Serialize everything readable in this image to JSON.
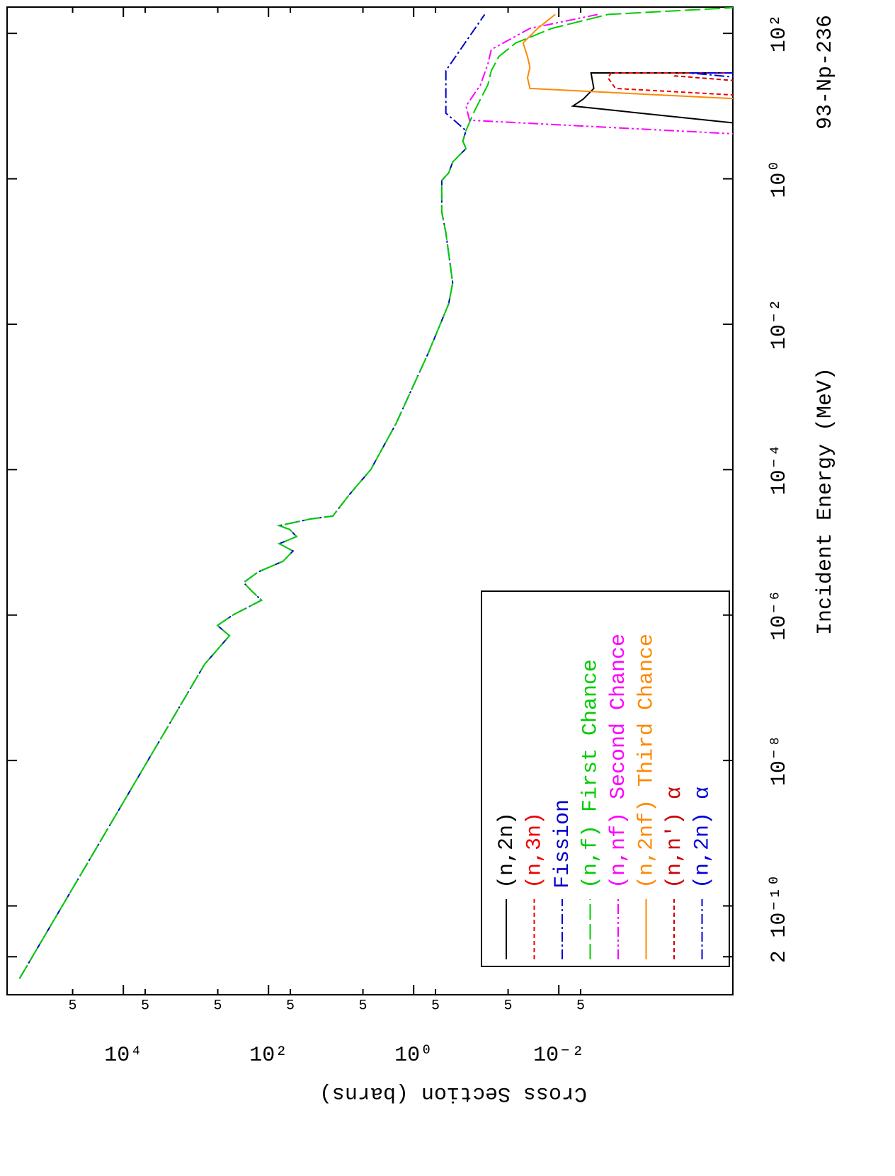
{
  "chart_data": {
    "type": "line",
    "x_label": "Incident Energy (MeV)",
    "y_label": "Cross Section (barns)",
    "annotation": "93-Np-236",
    "log_x": true,
    "log_y": true,
    "xlim": [
      6e-12,
      230
    ],
    "ylim": [
      4e-05,
      400000
    ],
    "xticks": [
      {
        "value": 2e-11,
        "label": "2"
      },
      {
        "value": 1e-10,
        "label": "10⁻¹⁰"
      },
      {
        "value": 1e-08,
        "label": "10⁻⁸"
      },
      {
        "value": 1e-06,
        "label": "10⁻⁶"
      },
      {
        "value": 0.0001,
        "label": "10⁻⁴"
      },
      {
        "value": 0.01,
        "label": "10⁻²"
      },
      {
        "value": 1,
        "label": "10⁰"
      },
      {
        "value": 100,
        "label": "10²"
      }
    ],
    "yticks": [
      {
        "value": 0.005,
        "label": "5"
      },
      {
        "value": 0.01,
        "label": "10⁻²"
      },
      {
        "value": 0.05,
        "label": "5"
      },
      {
        "value": 0.5,
        "label": "5"
      },
      {
        "value": 1,
        "label": "10⁰"
      },
      5,
      {
        "value": 50,
        "label": "5"
      },
      {
        "value": 100,
        "label": "10²"
      },
      {
        "value": 500,
        "label": "5"
      },
      {
        "value": 5000,
        "label": "5"
      },
      {
        "value": 10000,
        "label": "10⁴"
      },
      {
        "value": 50000,
        "label": "5"
      }
    ],
    "legend_position": "lower right",
    "series": [
      {
        "name": "(n,2n)",
        "color": "#000000",
        "dash": "",
        "x": [
          5.7,
          10,
          12.5,
          17.5,
          28.6,
          28.6
        ],
        "values": [
          3e-05,
          0.0064,
          0.0046,
          0.0033,
          0.0036,
          3e-05
        ]
      },
      {
        "name": "(n,3n)",
        "color": "#ee0000",
        "dash": "6,4",
        "x": [
          14,
          17.5,
          24.5,
          28.6,
          28.6
        ],
        "values": [
          3e-05,
          0.00166,
          0.0021,
          0.0019,
          3e-05
        ]
      },
      {
        "name": "Fission",
        "color": "#0000cc",
        "dash": "14,4,3,4",
        "x": [
          1e-11,
          2.1e-07,
          5.2e-07,
          7.2e-07,
          1e-06,
          1.6e-06,
          2.2e-06,
          2.8e-06,
          3.9e-06,
          5.5e-06,
          7.6e-06,
          9.6e-06,
          1.2e-05,
          1.5e-05,
          1.7e-05,
          2.1e-05,
          2.3e-05,
          4.6e-05,
          0.0001,
          0.00043,
          0.004,
          0.019,
          0.037,
          0.18,
          0.35,
          0.95,
          1.2,
          1.7,
          2.6,
          3.3,
          4.6,
          8,
          30.7,
          182
        ],
        "values": [
          270000,
          760,
          345,
          505,
          310,
          125,
          175,
          220,
          140,
          63,
          46,
          71,
          41,
          51,
          71,
          26,
          13,
          7.6,
          3.9,
          1.75,
          0.63,
          0.33,
          0.29,
          0.36,
          0.41,
          0.41,
          0.33,
          0.29,
          0.19,
          0.21,
          0.19,
          0.36,
          0.36,
          0.105
        ]
      },
      {
        "name": "(n,f) First Chance",
        "color": "#00cc00",
        "dash": "22,6",
        "x": [
          1e-11,
          2.1e-07,
          5.2e-07,
          7.2e-07,
          1e-06,
          1.6e-06,
          2.2e-06,
          2.8e-06,
          3.9e-06,
          5.5e-06,
          7.6e-06,
          9.6e-06,
          1.2e-05,
          1.5e-05,
          1.7e-05,
          2.1e-05,
          2.3e-05,
          4.6e-05,
          0.0001,
          0.00043,
          0.004,
          0.019,
          0.037,
          0.18,
          0.35,
          0.95,
          1.2,
          1.7,
          2.6,
          3.3,
          4.6,
          8,
          12.5,
          19.6,
          30.7,
          48,
          74,
          117,
          182,
          229
        ],
        "values": [
          270000,
          760,
          345,
          505,
          310,
          125,
          175,
          220,
          140,
          63,
          46,
          71,
          41,
          51,
          71,
          26,
          13,
          7.6,
          3.9,
          1.75,
          0.63,
          0.33,
          0.29,
          0.36,
          0.41,
          0.41,
          0.33,
          0.29,
          0.19,
          0.21,
          0.19,
          0.15,
          0.12,
          0.095,
          0.085,
          0.067,
          0.039,
          0.0125,
          0.0021,
          3e-05
        ]
      },
      {
        "name": "(n,nf) Second Chance",
        "color": "#ff00ff",
        "dash": "14,4,3,4,3,4",
        "x": [
          4.1,
          6.4,
          10,
          19.6,
          38,
          60,
          117,
          182
        ],
        "values": [
          3e-05,
          0.17,
          0.19,
          0.12,
          0.095,
          0.085,
          0.025,
          0.0029
        ]
      },
      {
        "name": "(n,2nf) Third Chance",
        "color": "#ff8800",
        "dash": "",
        "x": [
          12.5,
          17.5,
          24.5,
          34,
          48,
          74,
          117,
          182
        ],
        "values": [
          3e-05,
          0.025,
          0.027,
          0.025,
          0.027,
          0.031,
          0.0196,
          0.0112
        ]
      },
      {
        "name": "(n,n') α",
        "color": "#cc0000",
        "dash": "6,4",
        "x": [
          22,
          26,
          28.6,
          28.6
        ],
        "values": [
          3e-05,
          0.00025,
          0.00022,
          3e-05
        ]
      },
      {
        "name": "(n,2n) α",
        "color": "#0000dd",
        "dash": "14,4,3,4",
        "x": [
          24.5,
          28.6,
          28.6
        ],
        "values": [
          3e-05,
          0.00016,
          3e-05
        ]
      }
    ]
  }
}
